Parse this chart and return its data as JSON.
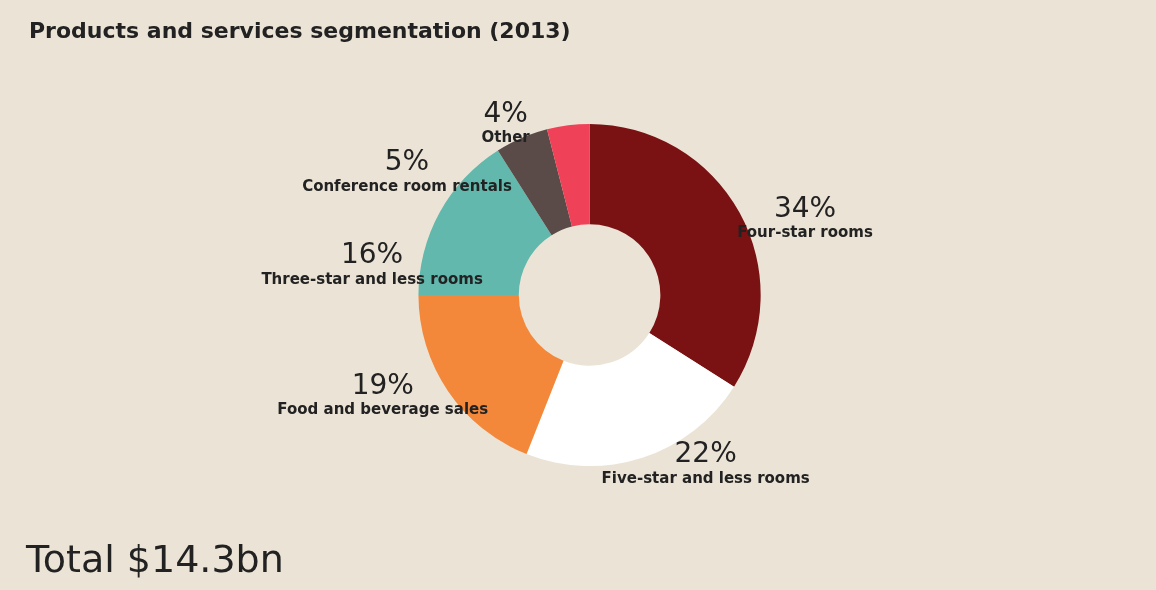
{
  "chart_data": {
    "type": "donut",
    "title": "Products and services segmentation (2013)",
    "categories": [
      "Four-star rooms",
      "Five-star and less rooms",
      "Food and beverage sales",
      "Three-star and less rooms",
      "Conference room rentals",
      "Other"
    ],
    "values": [
      34,
      22,
      19,
      16,
      5,
      4
    ],
    "colors": [
      "#7a1214",
      "#ffffff",
      "#f3873a",
      "#62b8ad",
      "#5a4a48",
      "#ef4158"
    ],
    "value_labels": [
      "34%",
      "22%",
      "19%",
      "16%",
      "5%",
      "4%"
    ],
    "legend": false,
    "annotations": [
      "Total $14.3bn"
    ]
  }
}
